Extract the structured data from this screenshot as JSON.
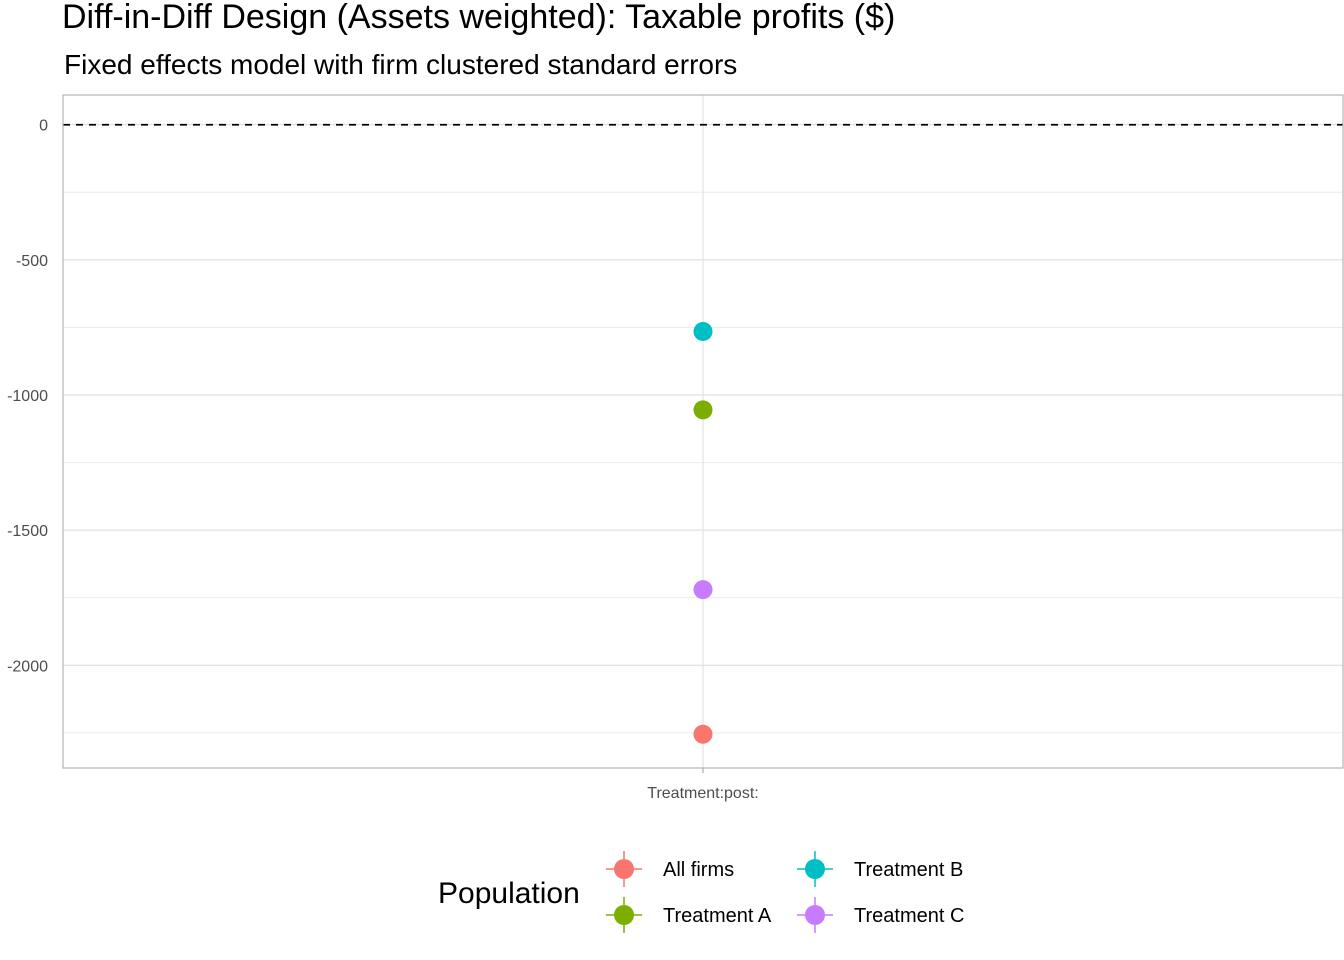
{
  "chart_data": {
    "type": "scatter",
    "title": "Diff-in-Diff Design (Assets weighted): Taxable profits  ($)",
    "subtitle": "Fixed effects model with firm clustered standard errors",
    "categories": [
      "Treatment:post:"
    ],
    "ylim": [
      -2380,
      110
    ],
    "y_ticks": [
      0,
      -500,
      -1000,
      -1500,
      -2000
    ],
    "y_tick_labels": [
      "0",
      "-500",
      "-1000",
      "-1500",
      "-2000"
    ],
    "reference_line": {
      "y": 0,
      "style": "dashed"
    },
    "grid": true,
    "legend": {
      "title": "Population",
      "position": "bottom"
    },
    "series": [
      {
        "name": "All firms",
        "color": "#F8766D",
        "values": [
          -2255
        ]
      },
      {
        "name": "Treatment A",
        "color": "#7CAE00",
        "values": [
          -1055
        ]
      },
      {
        "name": "Treatment B",
        "color": "#00BFC4",
        "values": [
          -765
        ]
      },
      {
        "name": "Treatment C",
        "color": "#C77CFF",
        "values": [
          -1720
        ]
      }
    ]
  }
}
